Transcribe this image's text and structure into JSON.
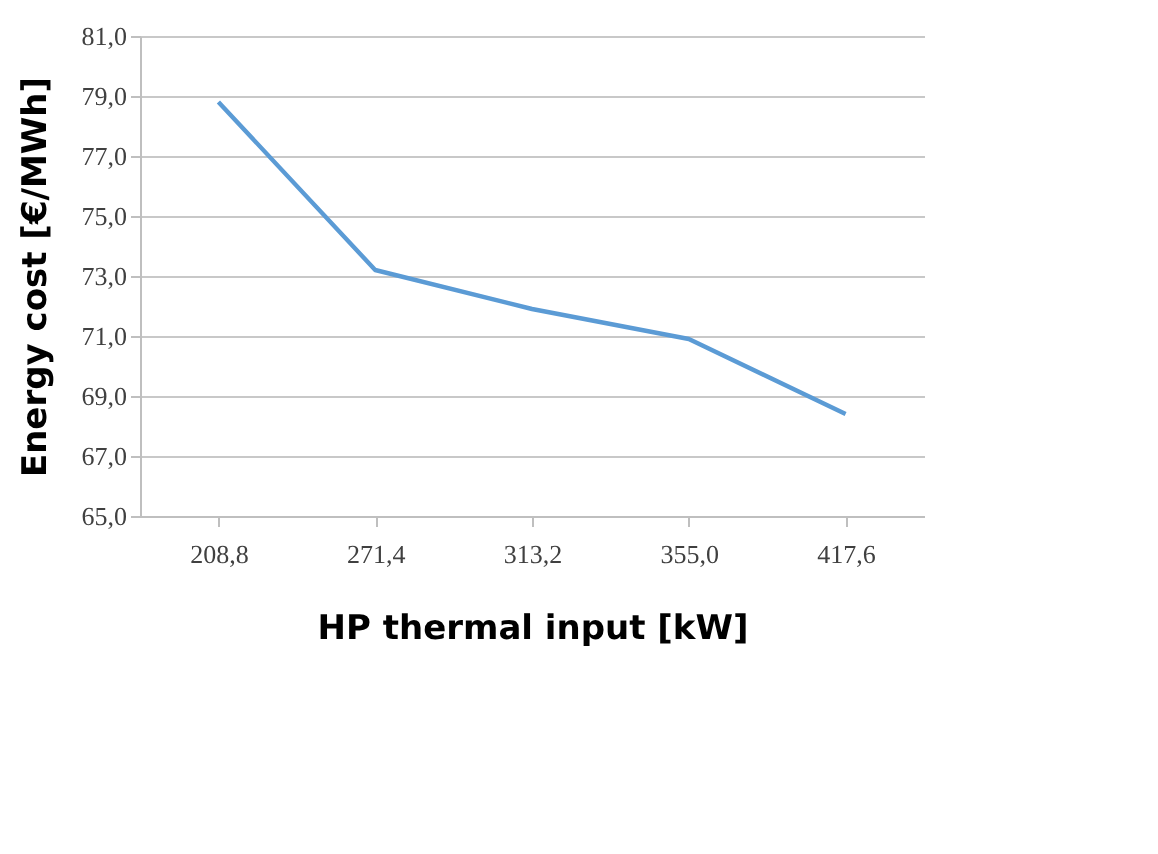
{
  "chart_data": {
    "type": "line",
    "xlabel": "HP thermal input [kW]",
    "ylabel": "Energy cost [€/MWh]",
    "categories": [
      "208,8",
      "271,4",
      "313,2",
      "355,0",
      "417,6"
    ],
    "series": [
      {
        "color": "#5b9bd5",
        "values": [
          78.8,
          73.2,
          71.9,
          70.9,
          68.4
        ]
      }
    ],
    "ylim": [
      65,
      81
    ],
    "yticks": [
      {
        "value": 65,
        "label": "65,0"
      },
      {
        "value": 67,
        "label": "67,0"
      },
      {
        "value": 69,
        "label": "69,0"
      },
      {
        "value": 71,
        "label": "71,0"
      },
      {
        "value": 73,
        "label": "73,0"
      },
      {
        "value": 75,
        "label": "75,0"
      },
      {
        "value": 77,
        "label": "77,0"
      },
      {
        "value": 79,
        "label": "79,0"
      },
      {
        "value": 81,
        "label": "81,0"
      }
    ],
    "grid": "y",
    "legend": false,
    "marker": "none",
    "line_style": "solid"
  }
}
